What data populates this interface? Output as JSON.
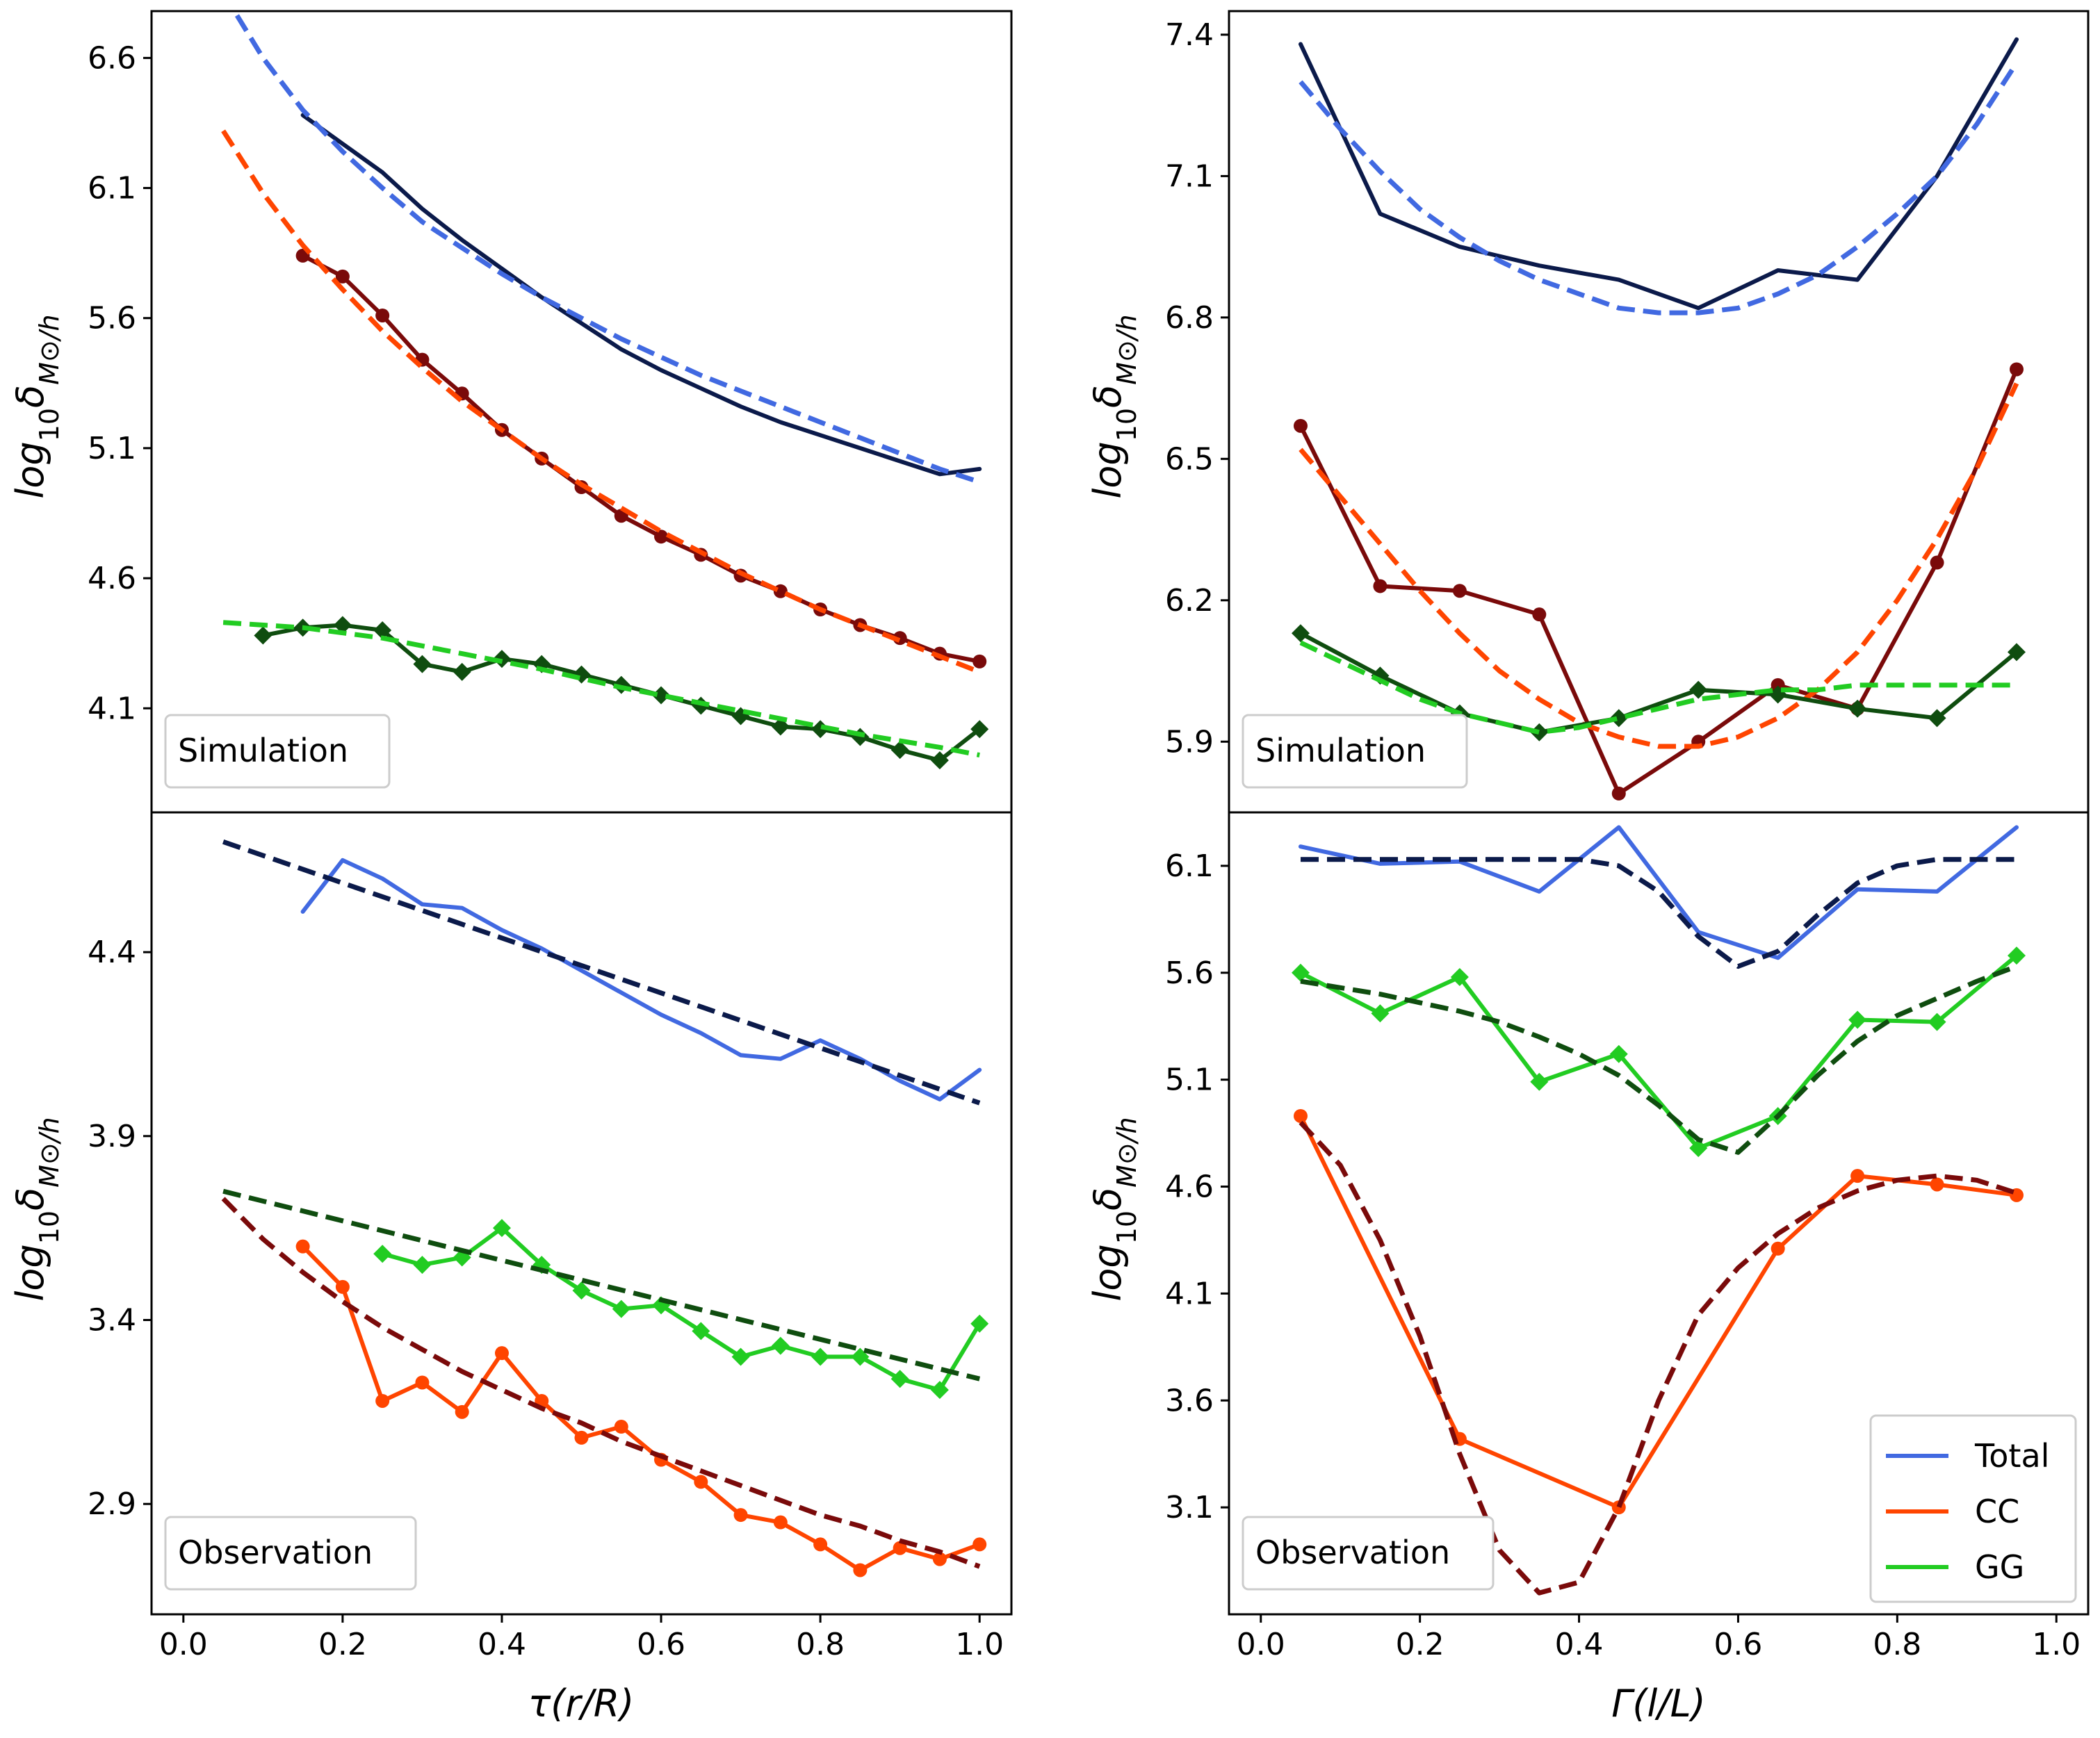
{
  "chart_data": [
    {
      "type": "line",
      "panel": "top-left",
      "annotation": "Simulation",
      "ylabel": "log10 δ M⊙/h",
      "xlim": [
        -0.04,
        1.04
      ],
      "ylim": [
        3.7,
        6.78
      ],
      "yticks": [
        "4.1",
        "4.6",
        "5.1",
        "5.6",
        "6.1",
        "6.6"
      ],
      "yticks_values": [
        4.1,
        4.6,
        5.1,
        5.6,
        6.1,
        6.6
      ],
      "series": [
        {
          "color": "#0b1a4a",
          "style": "solid",
          "marker": "none",
          "x": [
            0.15,
            0.2,
            0.25,
            0.3,
            0.35,
            0.4,
            0.45,
            0.5,
            0.55,
            0.6,
            0.65,
            0.7,
            0.75,
            0.8,
            0.85,
            0.9,
            0.95,
            1.0
          ],
          "y": [
            6.38,
            6.27,
            6.16,
            6.02,
            5.9,
            5.79,
            5.68,
            5.58,
            5.48,
            5.4,
            5.33,
            5.26,
            5.2,
            5.15,
            5.1,
            5.05,
            5.0,
            5.02
          ]
        },
        {
          "color": "#4169e1",
          "style": "dashed",
          "marker": "none",
          "x": [
            0.05,
            0.1,
            0.15,
            0.2,
            0.25,
            0.3,
            0.35,
            0.4,
            0.45,
            0.5,
            0.55,
            0.6,
            0.65,
            0.7,
            0.75,
            0.8,
            0.85,
            0.9,
            0.95,
            1.0
          ],
          "y": [
            6.85,
            6.6,
            6.4,
            6.24,
            6.1,
            5.97,
            5.87,
            5.77,
            5.68,
            5.6,
            5.52,
            5.45,
            5.38,
            5.32,
            5.26,
            5.2,
            5.14,
            5.08,
            5.02,
            4.97
          ]
        },
        {
          "color": "#7a0a0a",
          "style": "solid",
          "marker": "circle",
          "x": [
            0.15,
            0.2,
            0.25,
            0.3,
            0.35,
            0.4,
            0.45,
            0.5,
            0.55,
            0.6,
            0.65,
            0.7,
            0.75,
            0.8,
            0.85,
            0.9,
            0.95,
            1.0
          ],
          "y": [
            5.84,
            5.76,
            5.61,
            5.44,
            5.31,
            5.17,
            5.06,
            4.95,
            4.84,
            4.76,
            4.69,
            4.61,
            4.55,
            4.48,
            4.42,
            4.37,
            4.31,
            4.28
          ]
        },
        {
          "color": "#ff4500",
          "style": "dashed",
          "marker": "none",
          "x": [
            0.05,
            0.1,
            0.15,
            0.2,
            0.25,
            0.3,
            0.35,
            0.4,
            0.45,
            0.5,
            0.55,
            0.6,
            0.65,
            0.7,
            0.75,
            0.8,
            0.85,
            0.9,
            0.95,
            1.0
          ],
          "y": [
            6.32,
            6.08,
            5.88,
            5.71,
            5.55,
            5.41,
            5.28,
            5.17,
            5.06,
            4.96,
            4.87,
            4.78,
            4.7,
            4.62,
            4.55,
            4.48,
            4.42,
            4.36,
            4.3,
            4.24
          ]
        },
        {
          "color": "#0f4d0f",
          "style": "solid",
          "marker": "diamond",
          "x": [
            0.1,
            0.15,
            0.2,
            0.25,
            0.3,
            0.35,
            0.4,
            0.45,
            0.5,
            0.55,
            0.6,
            0.65,
            0.7,
            0.75,
            0.8,
            0.85,
            0.9,
            0.95,
            1.0
          ],
          "y": [
            4.38,
            4.41,
            4.42,
            4.4,
            4.27,
            4.24,
            4.29,
            4.27,
            4.23,
            4.19,
            4.15,
            4.11,
            4.07,
            4.03,
            4.02,
            3.99,
            3.94,
            3.9,
            4.02
          ]
        },
        {
          "color": "#22cc22",
          "style": "dashed",
          "marker": "none",
          "x": [
            0.05,
            0.15,
            0.25,
            0.35,
            0.45,
            0.55,
            0.65,
            0.75,
            0.85,
            0.95,
            1.0
          ],
          "y": [
            4.43,
            4.41,
            4.37,
            4.31,
            4.25,
            4.18,
            4.12,
            4.06,
            4.0,
            3.95,
            3.92
          ]
        }
      ]
    },
    {
      "type": "line",
      "panel": "top-right",
      "annotation": "Simulation",
      "ylabel": "log10 δ M⊙/h",
      "xlim": [
        -0.04,
        1.04
      ],
      "ylim": [
        5.75,
        7.45
      ],
      "yticks": [
        "5.9",
        "6.2",
        "6.5",
        "6.8",
        "7.1",
        "7.4"
      ],
      "yticks_values": [
        5.9,
        6.2,
        6.5,
        6.8,
        7.1,
        7.4
      ],
      "series": [
        {
          "color": "#0b1a4a",
          "style": "solid",
          "marker": "none",
          "x": [
            0.05,
            0.15,
            0.25,
            0.35,
            0.45,
            0.55,
            0.65,
            0.75,
            0.85,
            0.95
          ],
          "y": [
            7.38,
            7.02,
            6.95,
            6.91,
            6.88,
            6.82,
            6.9,
            6.88,
            7.1,
            7.39
          ]
        },
        {
          "color": "#4169e1",
          "style": "dashed",
          "marker": "none",
          "x": [
            0.05,
            0.1,
            0.15,
            0.2,
            0.25,
            0.3,
            0.35,
            0.4,
            0.45,
            0.5,
            0.55,
            0.6,
            0.65,
            0.7,
            0.75,
            0.8,
            0.85,
            0.9,
            0.95
          ],
          "y": [
            7.3,
            7.2,
            7.11,
            7.03,
            6.97,
            6.92,
            6.88,
            6.85,
            6.82,
            6.81,
            6.81,
            6.82,
            6.85,
            6.89,
            6.95,
            7.02,
            7.1,
            7.21,
            7.34
          ]
        },
        {
          "color": "#7a0a0a",
          "style": "solid",
          "marker": "circle",
          "x": [
            0.05,
            0.15,
            0.25,
            0.35,
            0.45,
            0.55,
            0.65,
            0.75,
            0.85,
            0.95
          ],
          "y": [
            6.57,
            6.23,
            6.22,
            6.17,
            5.79,
            5.9,
            6.02,
            5.97,
            6.28,
            6.69
          ]
        },
        {
          "color": "#ff4500",
          "style": "dashed",
          "marker": "none",
          "x": [
            0.05,
            0.1,
            0.15,
            0.2,
            0.25,
            0.3,
            0.35,
            0.4,
            0.45,
            0.5,
            0.55,
            0.6,
            0.65,
            0.7,
            0.75,
            0.8,
            0.85,
            0.9,
            0.95
          ],
          "y": [
            6.52,
            6.42,
            6.32,
            6.22,
            6.13,
            6.05,
            5.99,
            5.94,
            5.91,
            5.89,
            5.89,
            5.91,
            5.95,
            6.01,
            6.09,
            6.2,
            6.33,
            6.48,
            6.66
          ]
        },
        {
          "color": "#0f4d0f",
          "style": "solid",
          "marker": "diamond",
          "x": [
            0.05,
            0.15,
            0.25,
            0.35,
            0.45,
            0.55,
            0.65,
            0.75,
            0.85,
            0.95
          ],
          "y": [
            6.13,
            6.04,
            5.96,
            5.92,
            5.95,
            6.01,
            6.0,
            5.97,
            5.95,
            6.09
          ]
        },
        {
          "color": "#22cc22",
          "style": "dashed",
          "marker": "none",
          "x": [
            0.05,
            0.1,
            0.15,
            0.2,
            0.25,
            0.3,
            0.35,
            0.4,
            0.45,
            0.5,
            0.55,
            0.6,
            0.65,
            0.7,
            0.75,
            0.8,
            0.85,
            0.9,
            0.95
          ],
          "y": [
            6.11,
            6.07,
            6.03,
            5.99,
            5.96,
            5.94,
            5.92,
            5.93,
            5.95,
            5.97,
            5.99,
            6.0,
            6.01,
            6.01,
            6.02,
            6.02,
            6.02,
            6.02,
            6.02
          ]
        }
      ]
    },
    {
      "type": "line",
      "panel": "bottom-left",
      "annotation": "Observation",
      "ylabel": "log10 δ M⊙/h",
      "xlabel": "τ(r/R)",
      "xlim": [
        -0.04,
        1.04
      ],
      "ylim": [
        2.6,
        4.78
      ],
      "yticks": [
        "2.9",
        "3.4",
        "3.9",
        "4.4"
      ],
      "yticks_values": [
        2.9,
        3.4,
        3.9,
        4.4
      ],
      "xticks": [
        "0.0",
        "0.2",
        "0.4",
        "0.6",
        "0.8",
        "1.0"
      ],
      "xticks_values": [
        0.0,
        0.2,
        0.4,
        0.6,
        0.8,
        1.0
      ],
      "series": [
        {
          "color": "#4169e1",
          "style": "solid",
          "marker": "none",
          "x": [
            0.15,
            0.2,
            0.25,
            0.3,
            0.35,
            0.4,
            0.45,
            0.5,
            0.55,
            0.6,
            0.65,
            0.7,
            0.75,
            0.8,
            0.85,
            0.9,
            0.95,
            1.0
          ],
          "y": [
            4.51,
            4.65,
            4.6,
            4.53,
            4.52,
            4.46,
            4.41,
            4.35,
            4.29,
            4.23,
            4.18,
            4.12,
            4.11,
            4.16,
            4.11,
            4.05,
            4.0,
            4.08
          ]
        },
        {
          "color": "#0b1a4a",
          "style": "dashed",
          "marker": "none",
          "x": [
            0.05,
            1.0
          ],
          "y": [
            4.7,
            3.99
          ]
        },
        {
          "color": "#ff4500",
          "style": "solid",
          "marker": "circle",
          "x": [
            0.15,
            0.2,
            0.25,
            0.3,
            0.35,
            0.4,
            0.45,
            0.5,
            0.55,
            0.6,
            0.65,
            0.7,
            0.75,
            0.8,
            0.85,
            0.9,
            0.95,
            1.0
          ],
          "y": [
            3.6,
            3.49,
            3.18,
            3.23,
            3.15,
            3.31,
            3.18,
            3.08,
            3.11,
            3.02,
            2.96,
            2.87,
            2.85,
            2.79,
            2.72,
            2.78,
            2.75,
            2.79
          ]
        },
        {
          "color": "#7a0a0a",
          "style": "dashed",
          "marker": "none",
          "x": [
            0.05,
            0.1,
            0.15,
            0.2,
            0.25,
            0.3,
            0.35,
            0.4,
            0.45,
            0.5,
            0.55,
            0.6,
            0.65,
            0.7,
            0.75,
            0.8,
            0.85,
            0.9,
            0.95,
            1.0
          ],
          "y": [
            3.73,
            3.62,
            3.53,
            3.45,
            3.38,
            3.32,
            3.26,
            3.21,
            3.16,
            3.12,
            3.07,
            3.03,
            2.99,
            2.95,
            2.91,
            2.87,
            2.84,
            2.8,
            2.77,
            2.73
          ]
        },
        {
          "color": "#22cc22",
          "style": "solid",
          "marker": "diamond",
          "x": [
            0.25,
            0.3,
            0.35,
            0.4,
            0.45,
            0.5,
            0.55,
            0.6,
            0.65,
            0.7,
            0.75,
            0.8,
            0.85,
            0.9,
            0.95,
            1.0
          ],
          "y": [
            3.58,
            3.55,
            3.57,
            3.65,
            3.55,
            3.48,
            3.43,
            3.44,
            3.37,
            3.3,
            3.33,
            3.3,
            3.3,
            3.24,
            3.21,
            3.39
          ]
        },
        {
          "color": "#0f4d0f",
          "style": "dashed",
          "marker": "none",
          "x": [
            0.05,
            1.0
          ],
          "y": [
            3.75,
            3.24
          ]
        }
      ]
    },
    {
      "type": "line",
      "panel": "bottom-right",
      "annotation": "Observation",
      "ylabel": "log10 δ M⊙/h",
      "xlabel": "Γ(l/L)",
      "xlim": [
        -0.04,
        1.04
      ],
      "ylim": [
        2.6,
        6.35
      ],
      "yticks": [
        "3.1",
        "3.6",
        "4.1",
        "4.6",
        "5.1",
        "5.6",
        "6.1"
      ],
      "yticks_values": [
        3.1,
        3.6,
        4.1,
        4.6,
        5.1,
        5.6,
        6.1
      ],
      "xticks": [
        "0.0",
        "0.2",
        "0.4",
        "0.6",
        "0.8",
        "1.0"
      ],
      "xticks_values": [
        0.0,
        0.2,
        0.4,
        0.6,
        0.8,
        1.0
      ],
      "legend": {
        "position": "lower-right",
        "entries": [
          {
            "label": "Total",
            "color": "#4169e1"
          },
          {
            "label": "CC",
            "color": "#ff4500"
          },
          {
            "label": "GG",
            "color": "#22cc22"
          }
        ]
      },
      "series": [
        {
          "name": "Total",
          "color": "#4169e1",
          "style": "solid",
          "marker": "none",
          "x": [
            0.05,
            0.15,
            0.25,
            0.35,
            0.45,
            0.55,
            0.65,
            0.75,
            0.85,
            0.95
          ],
          "y": [
            6.19,
            6.11,
            6.12,
            5.98,
            6.28,
            5.79,
            5.67,
            5.99,
            5.98,
            6.28
          ]
        },
        {
          "color": "#0b1a4a",
          "style": "dashed",
          "marker": "none",
          "x": [
            0.05,
            0.1,
            0.15,
            0.2,
            0.25,
            0.3,
            0.35,
            0.4,
            0.45,
            0.5,
            0.55,
            0.6,
            0.65,
            0.7,
            0.75,
            0.8,
            0.85,
            0.9,
            0.95
          ],
          "y": [
            6.13,
            6.13,
            6.13,
            6.13,
            6.13,
            6.13,
            6.13,
            6.13,
            6.1,
            5.98,
            5.77,
            5.63,
            5.7,
            5.87,
            6.02,
            6.1,
            6.13,
            6.13,
            6.13
          ]
        },
        {
          "name": "CC",
          "color": "#ff4500",
          "style": "solid",
          "marker": "circle",
          "x": [
            0.05,
            0.25,
            0.45,
            0.65,
            0.75,
            0.85,
            0.95
          ],
          "y": [
            4.93,
            3.42,
            3.1,
            4.31,
            4.65,
            4.61,
            4.56
          ]
        },
        {
          "color": "#7a0a0a",
          "style": "dashed",
          "marker": "none",
          "x": [
            0.05,
            0.1,
            0.15,
            0.2,
            0.25,
            0.3,
            0.35,
            0.4,
            0.45,
            0.5,
            0.55,
            0.6,
            0.65,
            0.7,
            0.75,
            0.8,
            0.85,
            0.9,
            0.95
          ],
          "y": [
            4.9,
            4.7,
            4.35,
            3.9,
            3.35,
            2.9,
            2.7,
            2.75,
            3.1,
            3.6,
            4.0,
            4.22,
            4.38,
            4.5,
            4.58,
            4.63,
            4.65,
            4.63,
            4.57
          ]
        },
        {
          "name": "GG",
          "color": "#22cc22",
          "style": "solid",
          "marker": "diamond",
          "x": [
            0.05,
            0.15,
            0.25,
            0.35,
            0.45,
            0.55,
            0.65,
            0.75,
            0.85,
            0.95
          ],
          "y": [
            5.6,
            5.41,
            5.58,
            5.09,
            5.22,
            4.78,
            4.93,
            5.38,
            5.37,
            5.68
          ]
        },
        {
          "color": "#0f4d0f",
          "style": "dashed",
          "marker": "none",
          "x": [
            0.05,
            0.1,
            0.15,
            0.2,
            0.25,
            0.3,
            0.35,
            0.4,
            0.45,
            0.5,
            0.55,
            0.6,
            0.65,
            0.7,
            0.75,
            0.8,
            0.85,
            0.9,
            0.95
          ],
          "y": [
            5.56,
            5.53,
            5.5,
            5.46,
            5.42,
            5.37,
            5.3,
            5.22,
            5.12,
            4.98,
            4.82,
            4.76,
            4.93,
            5.12,
            5.28,
            5.4,
            5.48,
            5.56,
            5.63
          ]
        }
      ]
    }
  ]
}
